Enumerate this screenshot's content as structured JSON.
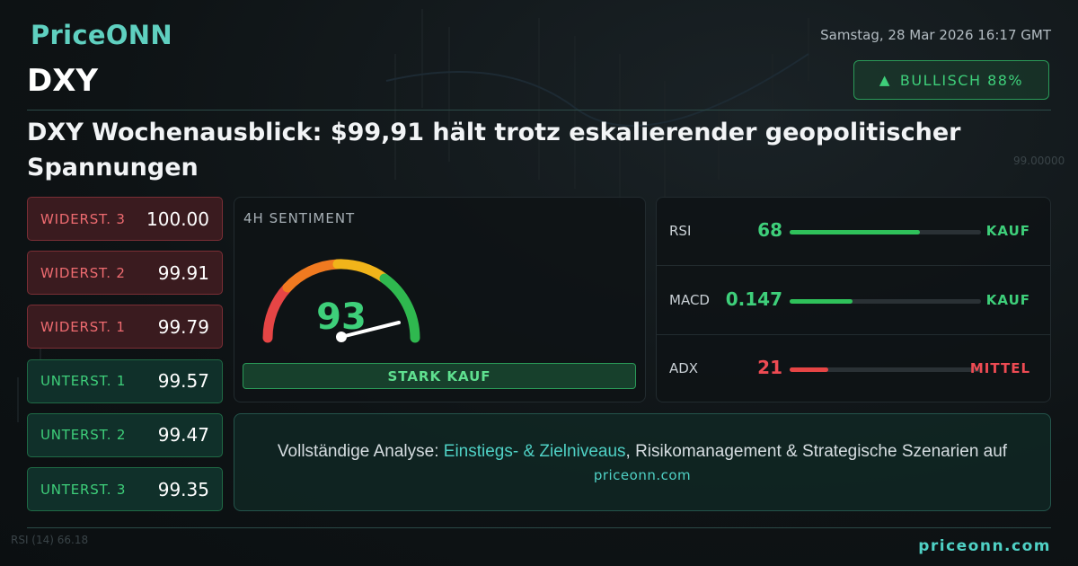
{
  "header": {
    "logo": "PriceONN",
    "date": "Samstag, 28 Mar 2026 16:17 GMT",
    "symbol": "DXY",
    "bias": "BULLISCH 88%",
    "headline": "DXY Wochenausblick: $99,91 hält trotz eskalierender geopolitischer Spannungen"
  },
  "levels": [
    {
      "label": "WIDERST. 3",
      "value": "100.00",
      "kind": "resistance"
    },
    {
      "label": "WIDERST. 2",
      "value": "99.91",
      "kind": "resistance"
    },
    {
      "label": "WIDERST. 1",
      "value": "99.79",
      "kind": "resistance"
    },
    {
      "label": "UNTERST. 1",
      "value": "99.57",
      "kind": "support"
    },
    {
      "label": "UNTERST. 2",
      "value": "99.47",
      "kind": "support"
    },
    {
      "label": "UNTERST. 3",
      "value": "99.35",
      "kind": "support"
    }
  ],
  "sentiment": {
    "label": "4H SENTIMENT",
    "score": "93",
    "signal": "STARK KAUF"
  },
  "indicators": [
    {
      "name": "RSI",
      "value": "68",
      "signal": "KAUF",
      "tone": "positive"
    },
    {
      "name": "MACD",
      "value": "0.147",
      "signal": "KAUF",
      "tone": "positive"
    },
    {
      "name": "ADX",
      "value": "21",
      "signal": "MITTEL",
      "tone": "negative"
    }
  ],
  "cta": {
    "text_before": "Vollständige Analyse: ",
    "highlight": "Einstiegs- & Zielniveaus",
    "text_after": ", Risikomanagement & Strategische Szenarien auf",
    "url": "priceonn.com"
  },
  "footer": {
    "url": "priceonn.com"
  },
  "background": {
    "axis_label": "99.00000",
    "indicator": "RSI (14)",
    "indicator_value": "66.18"
  }
}
